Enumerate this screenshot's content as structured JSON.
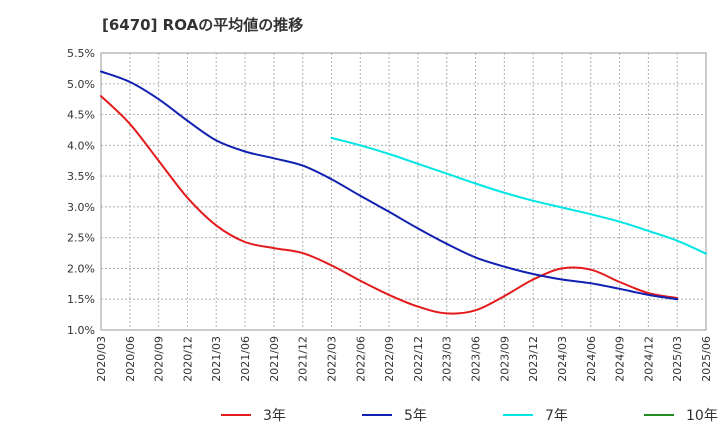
{
  "title": "[6470]  ROAの平均値の推移",
  "chart_data": {
    "type": "line",
    "ylim": [
      1.0,
      5.5
    ],
    "y_ticks": [
      "5.5%",
      "5.0%",
      "4.5%",
      "4.0%",
      "3.5%",
      "3.0%",
      "2.5%",
      "2.0%",
      "1.5%",
      "1.0%"
    ],
    "x_ticks": [
      "2020/03",
      "2020/06",
      "2020/09",
      "2020/12",
      "2021/03",
      "2021/06",
      "2021/09",
      "2021/12",
      "2022/03",
      "2022/06",
      "2022/09",
      "2022/12",
      "2023/03",
      "2023/06",
      "2023/09",
      "2023/12",
      "2024/03",
      "2024/06",
      "2024/09",
      "2024/12",
      "2025/03",
      "2025/06"
    ],
    "grid": true,
    "legend_position": "bottom",
    "series": [
      {
        "name": "3年",
        "color": "#e31a1c",
        "start_index": 0,
        "values": [
          4.8,
          4.35,
          3.75,
          3.15,
          2.7,
          2.43,
          2.33,
          2.25,
          2.05,
          1.8,
          1.57,
          1.38,
          1.27,
          1.32,
          1.55,
          1.82,
          2.0,
          1.98,
          1.78,
          1.6,
          1.52
        ]
      },
      {
        "name": "5年",
        "color": "#1020b0",
        "start_index": 0,
        "values": [
          5.2,
          5.03,
          4.75,
          4.4,
          4.08,
          3.9,
          3.79,
          3.67,
          3.45,
          3.18,
          2.92,
          2.65,
          2.4,
          2.18,
          2.03,
          1.91,
          1.82,
          1.76,
          1.67,
          1.57,
          1.5
        ]
      },
      {
        "name": "7年",
        "color": "#00e5e5",
        "start_index": 8,
        "values": [
          4.12,
          4.0,
          3.86,
          3.7,
          3.54,
          3.38,
          3.23,
          3.1,
          2.99,
          2.88,
          2.76,
          2.61,
          2.45,
          2.24
        ]
      },
      {
        "name": "10年",
        "color": "#228b22",
        "start_index": 0,
        "values": []
      }
    ]
  }
}
